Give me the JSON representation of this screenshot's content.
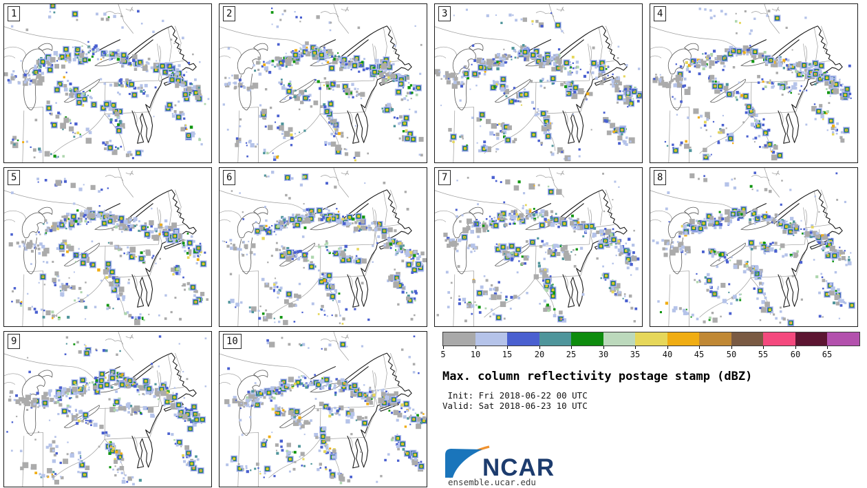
{
  "panels": [
    {
      "label": "1"
    },
    {
      "label": "2"
    },
    {
      "label": "3"
    },
    {
      "label": "4"
    },
    {
      "label": "5"
    },
    {
      "label": "6"
    },
    {
      "label": "7"
    },
    {
      "label": "8"
    },
    {
      "label": "9"
    },
    {
      "label": "10"
    }
  ],
  "legend": {
    "title": "Max. column reflectivity postage stamp (dBZ)",
    "init_label": " Init: Fri 2018-06-22 00 UTC",
    "valid_label": "Valid: Sat 2018-06-23 10 UTC",
    "units": "dBZ",
    "tick_values": [
      "5",
      "10",
      "15",
      "20",
      "25",
      "30",
      "35",
      "40",
      "45",
      "50",
      "55",
      "60",
      "65"
    ],
    "colors": [
      "#a9a9a9",
      "#b5c3e9",
      "#4a60d0",
      "#4f959b",
      "#0e8c0e",
      "#bcd9bc",
      "#e6d75a",
      "#f0ad13",
      "#c08835",
      "#7a5a43",
      "#f4497e",
      "#5c1531",
      "#b351ad"
    ]
  },
  "footer": {
    "logo_text": "NCAR",
    "url": "ensemble.ucar.edu"
  }
}
